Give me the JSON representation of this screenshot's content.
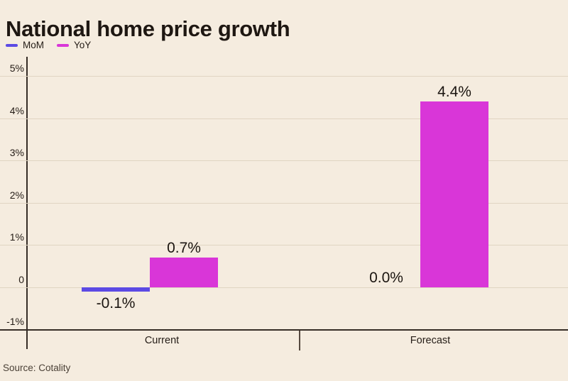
{
  "title": "National home price growth",
  "source": "Source: Cotality",
  "colors": {
    "background": "#f5ecdf",
    "mom": "#5c4ae4",
    "yoy": "#d936d8",
    "gridline": "#e0d5c2",
    "axis": "#362d26",
    "text": "#241c16"
  },
  "chart_data": {
    "type": "bar",
    "categories": [
      "Current",
      "Forecast"
    ],
    "series": [
      {
        "name": "MoM",
        "color": "#5c4ae4",
        "values": [
          -0.1,
          0.0
        ],
        "labels": [
          "-0.1%",
          "0.0%"
        ]
      },
      {
        "name": "YoY",
        "color": "#d936d8",
        "values": [
          0.7,
          4.4
        ],
        "labels": [
          "0.7%",
          "4.4%"
        ]
      }
    ],
    "title": "National home price growth",
    "xlabel": "",
    "ylabel": "",
    "ylim": [
      -1,
      5
    ],
    "yticks": [
      {
        "value": 5,
        "label": "5%"
      },
      {
        "value": 4,
        "label": "4%"
      },
      {
        "value": 3,
        "label": "3%"
      },
      {
        "value": 2,
        "label": "2%"
      },
      {
        "value": 1,
        "label": "1%"
      },
      {
        "value": 0,
        "label": "0"
      },
      {
        "value": -1,
        "label": "-1%"
      }
    ],
    "grid": true,
    "legend_position": "top-left"
  }
}
